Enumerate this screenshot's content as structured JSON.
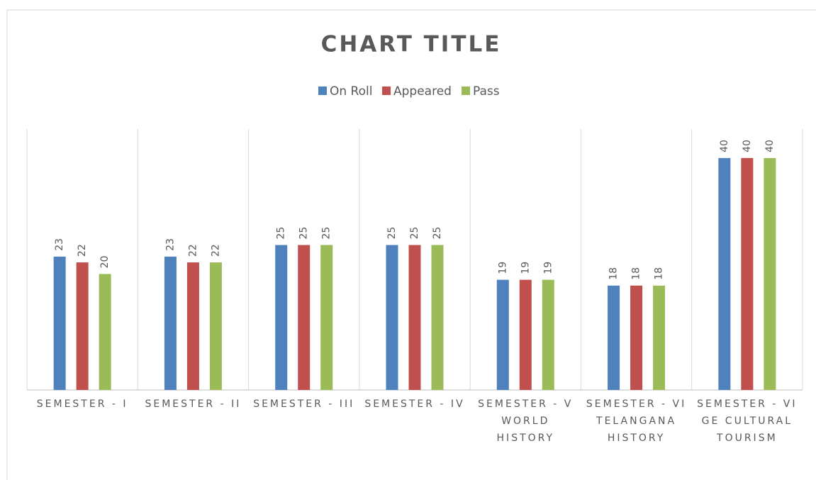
{
  "chart_data": {
    "type": "bar",
    "title": "CHART TITLE",
    "categories": [
      "SEMESTER - I",
      "SEMESTER - II",
      "SEMESTER - III",
      "SEMESTER - IV",
      "SEMESTER - V WORLD HISTORY",
      "SEMESTER - VI TELANGANA HISTORY",
      "SEMESTER - VI GE CULTURAL TOURISM"
    ],
    "series": [
      {
        "name": "On Roll",
        "color": "#4f81bd",
        "values": [
          23,
          23,
          25,
          25,
          19,
          18,
          40
        ]
      },
      {
        "name": "Appeared",
        "color": "#c0504d",
        "values": [
          22,
          22,
          25,
          25,
          19,
          18,
          40
        ]
      },
      {
        "name": "Pass",
        "color": "#9bbb59",
        "values": [
          20,
          22,
          25,
          25,
          19,
          18,
          40
        ]
      }
    ],
    "ylim": [
      0,
      45
    ],
    "legend": "top"
  }
}
